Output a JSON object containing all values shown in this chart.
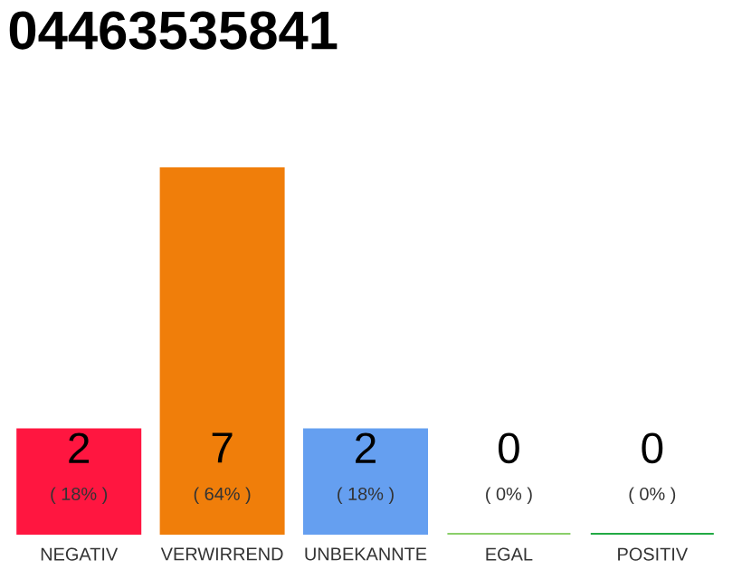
{
  "chart_data": {
    "type": "bar",
    "title": "04463535841",
    "categories": [
      "NEGATIV",
      "VERWIRREND",
      "UNBEKANNTE",
      "EGAL",
      "POSITIV"
    ],
    "values": [
      2,
      7,
      2,
      0,
      0
    ],
    "colors": [
      "#ff1640",
      "#f07e0a",
      "#659ff0",
      "#8bcf6a",
      "#22aa44"
    ],
    "ylim": [
      0,
      7
    ],
    "tick_labels": "x",
    "data_labels": true,
    "annotations": [
      "( 18% )",
      "( 64% )",
      "( 18% )",
      "( 0% )",
      "( 0% )"
    ]
  }
}
